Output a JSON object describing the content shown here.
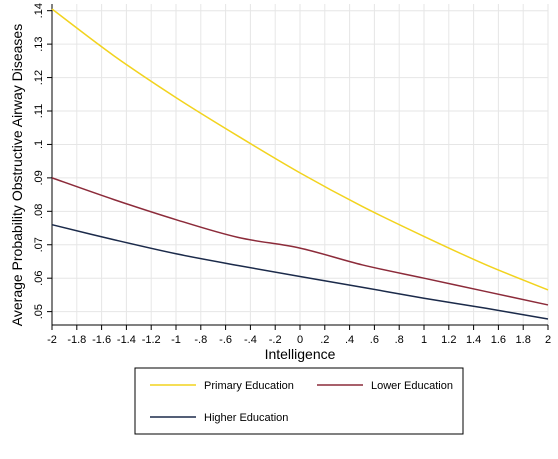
{
  "chart_data": {
    "type": "line",
    "xlabel": "Intelligence",
    "ylabel": "Average Probability Obstructive Airway Diseases",
    "xlim": [
      -2,
      2
    ],
    "ylim": [
      0.046,
      0.142
    ],
    "x_ticks": [
      -2,
      -1.8,
      -1.6,
      -1.4,
      -1.2,
      -1,
      -0.8,
      -0.6,
      -0.4,
      -0.2,
      0,
      0.2,
      0.4,
      0.6,
      0.8,
      1,
      1.2,
      1.4,
      1.6,
      1.8,
      2
    ],
    "x_tick_labels": [
      "-2",
      "-1.8",
      "-1.6",
      "-1.4",
      "-1.2",
      "-1",
      "-.8",
      "-.6",
      "-.4",
      "-.2",
      "0",
      ".2",
      ".4",
      ".6",
      ".8",
      "1",
      "1.2",
      "1.4",
      "1.6",
      "1.8",
      "2"
    ],
    "y_ticks": [
      0.05,
      0.06,
      0.07,
      0.08,
      0.09,
      0.1,
      0.11,
      0.12,
      0.13,
      0.14
    ],
    "y_tick_labels": [
      ".05",
      ".06",
      ".07",
      ".08",
      ".09",
      ".1",
      ".11",
      ".12",
      ".13",
      ".14"
    ],
    "grid": true,
    "legend_position": "bottom",
    "x": [
      -2,
      -1.5,
      -1,
      -0.5,
      0,
      0.5,
      1,
      1.5,
      2
    ],
    "series": [
      {
        "name": "Primary Education",
        "color": "#f2d31e",
        "values": [
          0.1405,
          0.1265,
          0.114,
          0.1025,
          0.0915,
          0.0815,
          0.0725,
          0.064,
          0.0565
        ]
      },
      {
        "name": "Lower Education",
        "color": "#8c2b3a",
        "values": [
          0.09,
          0.0835,
          0.0775,
          0.0722,
          0.069,
          0.064,
          0.06,
          0.056,
          0.052
        ]
      },
      {
        "name": "Higher Education",
        "color": "#1b2a4a",
        "values": [
          0.076,
          0.0715,
          0.0673,
          0.0638,
          0.0605,
          0.0573,
          0.054,
          0.051,
          0.0478
        ]
      }
    ]
  }
}
